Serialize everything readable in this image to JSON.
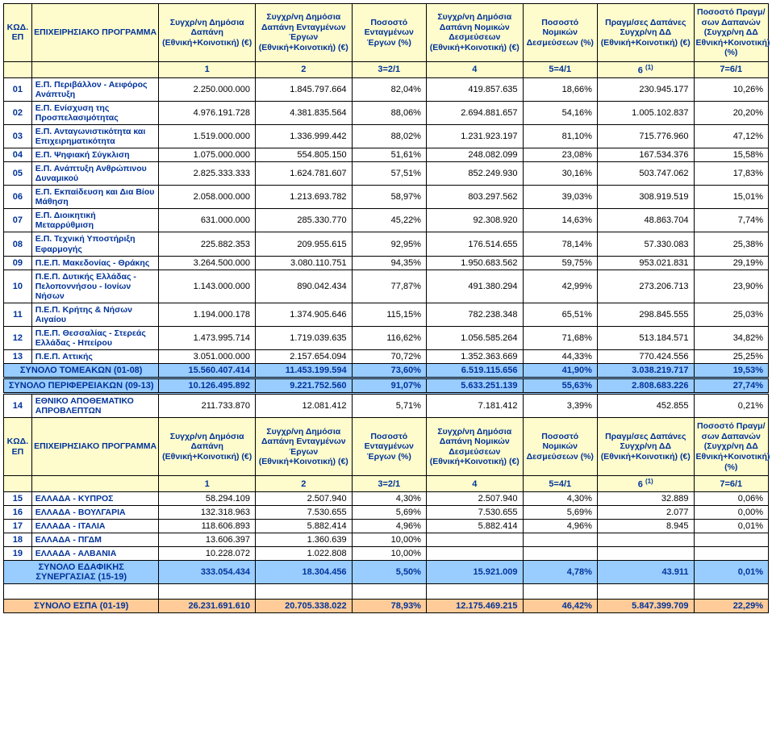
{
  "headers": {
    "code": "ΚΩΔ. ΕΠ",
    "program": "ΕΠΙΧΕΙΡΗΣΙΑΚΟ ΠΡΟΓΡΑΜΜΑ",
    "col1": "Συγχρ/νη Δημόσια Δαπάνη (Εθνική+Κοινοτική) (€)",
    "col2": "Συγχρ/νη Δημόσια Δαπάνη Ενταγμένων Έργων (Εθνική+Κοινοτική) (€)",
    "col3": "Ποσοστό Ενταγμένων Έργων (%)",
    "col4": "Συγχρ/νη Δημόσια Δαπάνη Νομικών Δεσμεύσεων (Εθνική+Κοινοτική) (€)",
    "col5": "Ποσοστό Νομικών Δεσμεύσεων (%)",
    "col6": "Πραγμ/σες Δαπάνες Συγχρ/νη ΔΔ (Εθνική+Κοινοτική) (€)",
    "col7": "Ποσοστό Πραγμ/σων Δαπανών (Συγχρ/νη ΔΔ Εθνική+Κοινοτική) (%)",
    "n1": "1",
    "n2": "2",
    "n3": "3=2/1",
    "n4": "4",
    "n5": "5=4/1",
    "n6pre": "6 ",
    "n6sup": "(1)",
    "n7": "7=6/1"
  },
  "rows": [
    {
      "code": "01",
      "name": "Ε.Π. Περιβάλλον - Αειφόρος Ανάπτυξη",
      "c1": "2.250.000.000",
      "c2": "1.845.797.664",
      "c3": "82,04%",
      "c4": "419.857.635",
      "c5": "18,66%",
      "c6": "230.945.177",
      "c7": "10,26%"
    },
    {
      "code": "02",
      "name": "Ε.Π. Ενίσχυση της Προσπελασιμότητας",
      "c1": "4.976.191.728",
      "c2": "4.381.835.564",
      "c3": "88,06%",
      "c4": "2.694.881.657",
      "c5": "54,16%",
      "c6": "1.005.102.837",
      "c7": "20,20%"
    },
    {
      "code": "03",
      "name": "Ε.Π. Ανταγωνιστικότητα και Επιχειρηματικότητα",
      "c1": "1.519.000.000",
      "c2": "1.336.999.442",
      "c3": "88,02%",
      "c4": "1.231.923.197",
      "c5": "81,10%",
      "c6": "715.776.960",
      "c7": "47,12%"
    },
    {
      "code": "04",
      "name": "Ε.Π. Ψηφιακή Σύγκλιση",
      "c1": "1.075.000.000",
      "c2": "554.805.150",
      "c3": "51,61%",
      "c4": "248.082.099",
      "c5": "23,08%",
      "c6": "167.534.376",
      "c7": "15,58%"
    },
    {
      "code": "05",
      "name": "Ε.Π. Ανάπτυξη Ανθρώπινου Δυναμικού",
      "c1": "2.825.333.333",
      "c2": "1.624.781.607",
      "c3": "57,51%",
      "c4": "852.249.930",
      "c5": "30,16%",
      "c6": "503.747.062",
      "c7": "17,83%"
    },
    {
      "code": "06",
      "name": "Ε.Π. Εκπαίδευση και Δια Βίου Μάθηση",
      "c1": "2.058.000.000",
      "c2": "1.213.693.782",
      "c3": "58,97%",
      "c4": "803.297.562",
      "c5": "39,03%",
      "c6": "308.919.519",
      "c7": "15,01%"
    },
    {
      "code": "07",
      "name": "Ε.Π. Διοικητική Μεταρρύθμιση",
      "c1": "631.000.000",
      "c2": "285.330.770",
      "c3": "45,22%",
      "c4": "92.308.920",
      "c5": "14,63%",
      "c6": "48.863.704",
      "c7": "7,74%"
    },
    {
      "code": "08",
      "name": "Ε.Π. Τεχνική Υποστήριξη Εφαρμογής",
      "c1": "225.882.353",
      "c2": "209.955.615",
      "c3": "92,95%",
      "c4": "176.514.655",
      "c5": "78,14%",
      "c6": "57.330.083",
      "c7": "25,38%"
    },
    {
      "code": "09",
      "name": "Π.Ε.Π. Μακεδονίας - Θράκης",
      "c1": "3.264.500.000",
      "c2": "3.080.110.751",
      "c3": "94,35%",
      "c4": "1.950.683.562",
      "c5": "59,75%",
      "c6": "953.021.831",
      "c7": "29,19%"
    },
    {
      "code": "10",
      "name": "Π.Ε.Π. Δυτικής Ελλάδας - Πελοποννήσου - Ιονίων Νήσων",
      "c1": "1.143.000.000",
      "c2": "890.042.434",
      "c3": "77,87%",
      "c4": "491.380.294",
      "c5": "42,99%",
      "c6": "273.206.713",
      "c7": "23,90%"
    },
    {
      "code": "11",
      "name": "Π.Ε.Π. Κρήτης & Νήσων Αιγαίου",
      "c1": "1.194.000.178",
      "c2": "1.374.905.646",
      "c3": "115,15%",
      "c4": "782.238.348",
      "c5": "65,51%",
      "c6": "298.845.555",
      "c7": "25,03%"
    },
    {
      "code": "12",
      "name": "Π.Ε.Π. Θεσσαλίας - Στερεάς Ελλάδας - Ηπείρου",
      "c1": "1.473.995.714",
      "c2": "1.719.039.635",
      "c3": "116,62%",
      "c4": "1.056.585.264",
      "c5": "71,68%",
      "c6": "513.184.571",
      "c7": "34,82%"
    },
    {
      "code": "13",
      "name": "Π.Ε.Π. Αττικής",
      "c1": "3.051.000.000",
      "c2": "2.157.654.094",
      "c3": "70,72%",
      "c4": "1.352.363.669",
      "c5": "44,33%",
      "c6": "770.424.556",
      "c7": "25,25%"
    }
  ],
  "subtotal1": {
    "label": "ΣΥΝΟΛΟ ΤΟΜΕΑΚΩΝ (01-08)",
    "c1": "15.560.407.414",
    "c2": "11.453.199.594",
    "c3": "73,60%",
    "c4": "6.519.115.656",
    "c5": "41,90%",
    "c6": "3.038.219.717",
    "c7": "19,53%"
  },
  "subtotal2": {
    "label": "ΣΥΝΟΛΟ ΠΕΡΙΦΕΡΕΙΑΚΩΝ (09-13)",
    "c1": "10.126.495.892",
    "c2": "9.221.752.560",
    "c3": "91,07%",
    "c4": "5.633.251.139",
    "c5": "55,63%",
    "c6": "2.808.683.226",
    "c7": "27,74%"
  },
  "row14": {
    "code": "14",
    "name": "ΕΘΝΙΚΟ ΑΠΟΘΕΜΑΤΙΚΟ ΑΠΡΟΒΛΕΠΤΩΝ",
    "c1": "211.733.870",
    "c2": "12.081.412",
    "c3": "5,71%",
    "c4": "7.181.412",
    "c5": "3,39%",
    "c6": "452.855",
    "c7": "0,21%"
  },
  "rows2": [
    {
      "code": "15",
      "name": "ΕΛΛΑΔΑ - ΚΥΠΡΟΣ",
      "c1": "58.294.109",
      "c2": "2.507.940",
      "c3": "4,30%",
      "c4": "2.507.940",
      "c5": "4,30%",
      "c6": "32.889",
      "c7": "0,06%"
    },
    {
      "code": "16",
      "name": "ΕΛΛΑΔΑ - ΒΟΥΛΓΑΡΙΑ",
      "c1": "132.318.963",
      "c2": "7.530.655",
      "c3": "5,69%",
      "c4": "7.530.655",
      "c5": "5,69%",
      "c6": "2.077",
      "c7": "0,00%"
    },
    {
      "code": "17",
      "name": "ΕΛΛΑΔΑ - ΙΤΑΛΙΑ",
      "c1": "118.606.893",
      "c2": "5.882.414",
      "c3": "4,96%",
      "c4": "5.882.414",
      "c5": "4,96%",
      "c6": "8.945",
      "c7": "0,01%"
    },
    {
      "code": "18",
      "name": "ΕΛΛΑΔΑ - ΠΓΔΜ",
      "c1": "13.606.397",
      "c2": "1.360.639",
      "c3": "10,00%",
      "c4": "",
      "c5": "",
      "c6": "",
      "c7": ""
    },
    {
      "code": "19",
      "name": "ΕΛΛΑΔΑ - ΑΛΒΑΝΙΑ",
      "c1": "10.228.072",
      "c2": "1.022.808",
      "c3": "10,00%",
      "c4": "",
      "c5": "",
      "c6": "",
      "c7": ""
    }
  ],
  "subtotal3": {
    "label": "ΣΥΝΟΛΟ ΕΔΑΦΙΚΗΣ ΣΥΝΕΡΓΑΣΙΑΣ (15-19)",
    "c1": "333.054.434",
    "c2": "18.304.456",
    "c3": "5,50%",
    "c4": "15.921.009",
    "c5": "4,78%",
    "c6": "43.911",
    "c7": "0,01%"
  },
  "grand": {
    "label": "ΣΥΝΟΛΟ ΕΣΠΑ (01-19)",
    "c1": "26.231.691.610",
    "c2": "20.705.338.022",
    "c3": "78,93%",
    "c4": "12.175.469.215",
    "c5": "46,42%",
    "c6": "5.847.399.709",
    "c7": "22,29%"
  }
}
